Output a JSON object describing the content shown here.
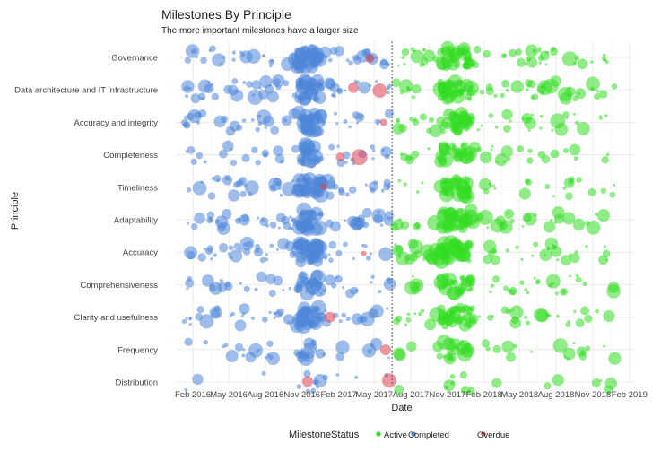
{
  "chart_data": {
    "type": "scatter",
    "title": "Milestones  By Principle",
    "subtitle": "The more important milestones have a larger size",
    "xlabel": "Date",
    "ylabel": "Principle",
    "x_ticks": [
      "Feb 2016",
      "May 2016",
      "Aug 2016",
      "Nov 2016",
      "Feb 2017",
      "May 2017",
      "Aug 2017",
      "Nov 2017",
      "Feb 2018",
      "May 2018",
      "Aug 2018",
      "Nov 2018",
      "Feb 2019"
    ],
    "xlim": [
      "2015-12-20",
      "2019-02-15"
    ],
    "reference_line_date": "2017-06-15",
    "categories": [
      "Governance",
      "Data architecture and IT infrastructure",
      "Accuracy and integrity",
      "Completeness",
      "Timeliness",
      "Adaptability",
      "Accuracy",
      "Comprehensiveness",
      "Clarity and usefulness",
      "Frequency",
      "Distribution"
    ],
    "legend": {
      "title": "MilestoneStatus",
      "position": "bottom",
      "entries": [
        {
          "label": "Active",
          "color": "#33dd22"
        },
        {
          "label": "Completed",
          "color": "#4f86d8"
        },
        {
          "label": "Overdue",
          "color": "#e04050"
        }
      ]
    },
    "series": [
      {
        "status": "Completed",
        "color": "#4f86d8",
        "range": [
          "2016-01-10",
          "2017-06-10"
        ],
        "cluster": [
          "2016-10-20",
          "2016-12-20"
        ],
        "density": [
          6,
          6,
          5,
          4,
          6,
          6,
          6,
          4,
          5,
          3,
          1
        ]
      },
      {
        "status": "Active",
        "color": "#33dd22",
        "range": [
          "2017-06-20",
          "2018-12-31"
        ],
        "cluster": [
          "2017-10-15",
          "2017-12-31"
        ],
        "density": [
          6,
          6,
          5,
          4,
          4,
          5,
          6,
          4,
          5,
          3,
          1
        ]
      },
      {
        "status": "Overdue",
        "color": "#e04050",
        "points": [
          {
            "x": "2017-04-20",
            "y": "Governance",
            "size": 5
          },
          {
            "x": "2017-03-10",
            "y": "Data architecture and IT infrastructure",
            "size": 6
          },
          {
            "x": "2017-05-15",
            "y": "Data architecture and IT infrastructure",
            "size": 8
          },
          {
            "x": "2017-05-25",
            "y": "Accuracy and integrity",
            "size": 4
          },
          {
            "x": "2017-03-25",
            "y": "Completeness",
            "size": 9
          },
          {
            "x": "2017-02-05",
            "y": "Completeness",
            "size": 5
          },
          {
            "x": "2016-12-25",
            "y": "Timeliness",
            "size": 4
          },
          {
            "x": "2017-04-05",
            "y": "Accuracy",
            "size": 3
          },
          {
            "x": "2017-01-10",
            "y": "Clarity and usefulness",
            "size": 6
          },
          {
            "x": "2017-05-30",
            "y": "Frequency",
            "size": 6
          },
          {
            "x": "2016-11-15",
            "y": "Distribution",
            "size": 6
          },
          {
            "x": "2017-06-08",
            "y": "Distribution",
            "size": 8
          }
        ]
      }
    ]
  }
}
